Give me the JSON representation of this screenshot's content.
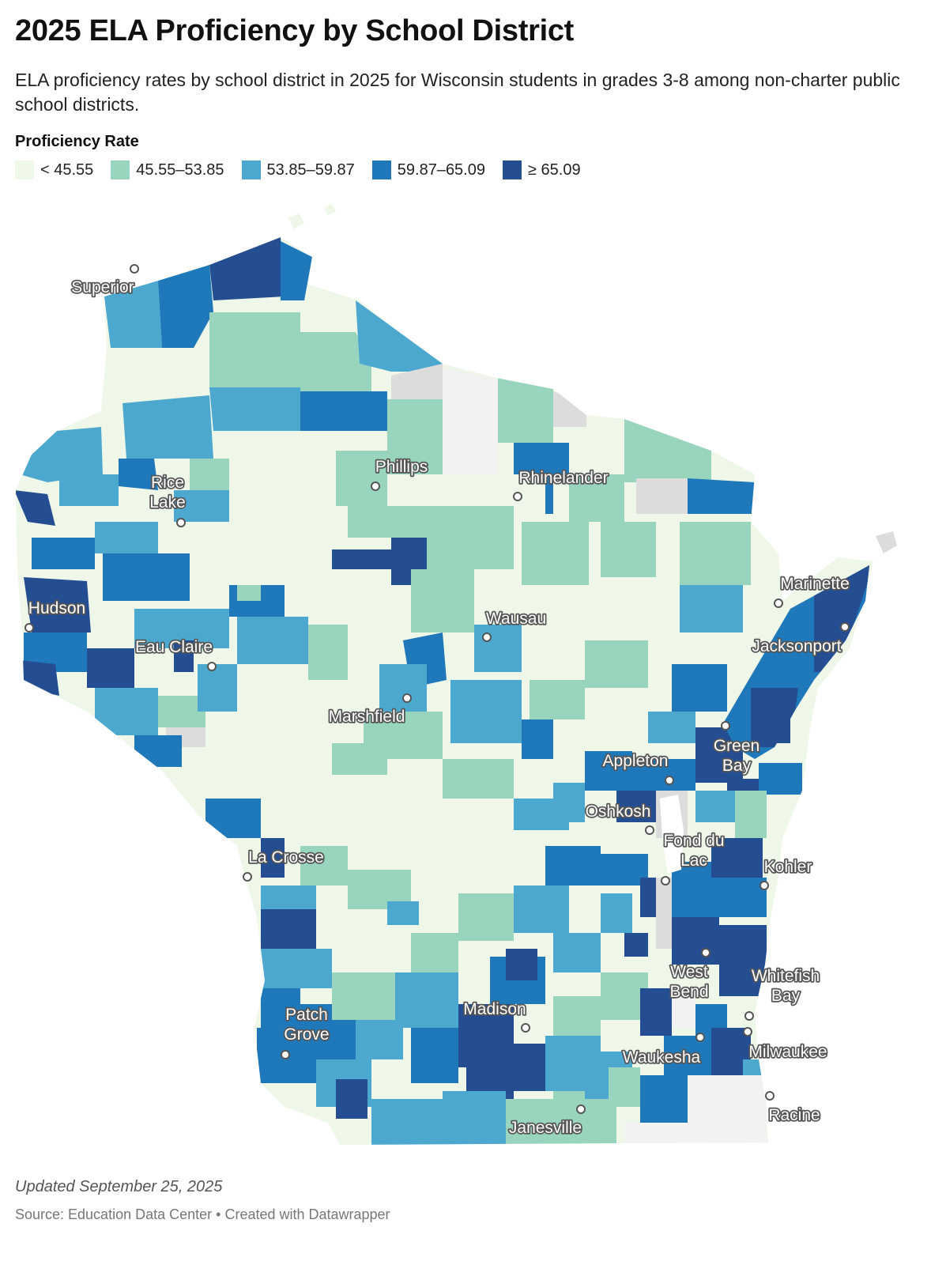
{
  "title": "2025 ELA Proficiency by School District",
  "subtitle": "ELA proficiency rates by school district in 2025 for Wisconsin students in grades 3-8 among non-charter public school districts.",
  "legend": {
    "title": "Proficiency Rate",
    "items": [
      {
        "label": "< 45.55",
        "color": "#eef7e8"
      },
      {
        "label": "45.55–53.85",
        "color": "#99d5bc"
      },
      {
        "label": "53.85–59.87",
        "color": "#4ca8cf"
      },
      {
        "label": "59.87–65.09",
        "color": "#1e78b9"
      },
      {
        "label": "≥ 65.09",
        "color": "#254e92"
      }
    ],
    "no_data_color": "#dcdcdc"
  },
  "cities": [
    {
      "name": "Superior"
    },
    {
      "name": "Rice Lake"
    },
    {
      "name": "Phillips"
    },
    {
      "name": "Rhinelander"
    },
    {
      "name": "Hudson"
    },
    {
      "name": "Eau Claire"
    },
    {
      "name": "Wausau"
    },
    {
      "name": "Marinette"
    },
    {
      "name": "Jacksonport"
    },
    {
      "name": "Marshfield"
    },
    {
      "name": "Green Bay"
    },
    {
      "name": "Appleton"
    },
    {
      "name": "Oshkosh"
    },
    {
      "name": "Fond du Lac"
    },
    {
      "name": "La Crosse"
    },
    {
      "name": "Kohler"
    },
    {
      "name": "West Bend"
    },
    {
      "name": "Whitefish Bay"
    },
    {
      "name": "Patch Grove"
    },
    {
      "name": "Madison"
    },
    {
      "name": "Waukesha"
    },
    {
      "name": "Milwaukee"
    },
    {
      "name": "Janesville"
    },
    {
      "name": "Racine"
    }
  ],
  "footer": {
    "updated": "Updated September 25, 2025",
    "source": "Source: Education Data Center • Created with Datawrapper"
  }
}
